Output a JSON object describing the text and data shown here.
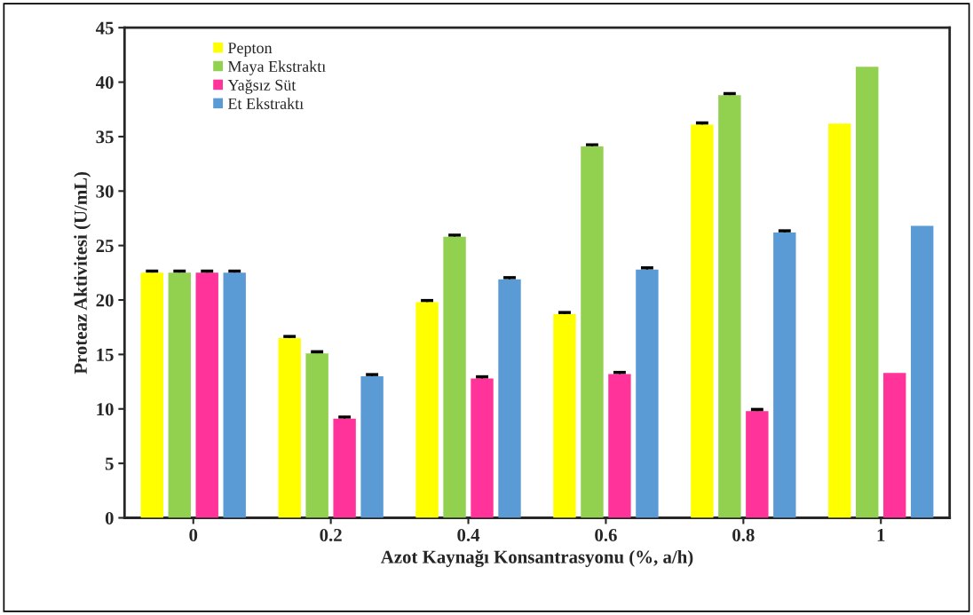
{
  "chart_data": {
    "type": "bar",
    "xlabel": "Azot Kaynağı Konsantrasyonu (%, a/h)",
    "ylabel": "Proteaz Aktivitesi (U/mL)",
    "categories": [
      "0",
      "0.2",
      "0.4",
      "0.6",
      "0.8",
      "1"
    ],
    "series": [
      {
        "name": "Pepton",
        "color": "#ffff00",
        "values": [
          22.5,
          16.5,
          19.8,
          18.7,
          36.1,
          36.2
        ],
        "errors": [
          0.15,
          0.15,
          0.15,
          0.15,
          0.15,
          null
        ]
      },
      {
        "name": "Maya Ekstraktı",
        "color": "#92d050",
        "values": [
          22.5,
          15.1,
          25.8,
          34.1,
          38.8,
          41.4
        ],
        "errors": [
          0.15,
          0.15,
          0.15,
          0.15,
          0.15,
          null
        ]
      },
      {
        "name": "Yağsız Süt",
        "color": "#ff3399",
        "values": [
          22.5,
          9.1,
          12.8,
          13.2,
          9.8,
          13.3
        ],
        "errors": [
          0.15,
          0.15,
          0.15,
          0.15,
          0.15,
          null
        ]
      },
      {
        "name": "Et Ekstraktı",
        "color": "#5b9bd5",
        "values": [
          22.5,
          13.0,
          21.9,
          22.8,
          26.2,
          26.8
        ],
        "errors": [
          0.15,
          0.15,
          0.15,
          0.15,
          0.15,
          null
        ]
      }
    ],
    "ylim": [
      0,
      45
    ],
    "yticks": [
      0,
      5,
      10,
      15,
      20,
      25,
      30,
      35,
      40,
      45
    ],
    "grid": false,
    "legend": "top left"
  }
}
